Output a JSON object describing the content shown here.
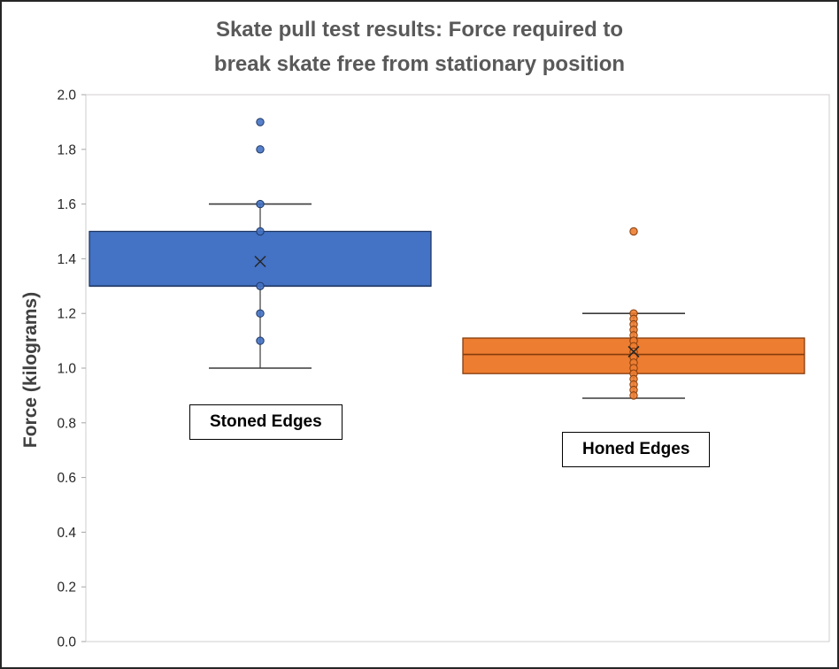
{
  "title": {
    "line1": "Skate pull test results: Force required to",
    "line2": "break skate free from stationary position"
  },
  "y_axis_label": "Force (kilograms)",
  "chart_data": {
    "type": "boxplot",
    "title": "Skate pull test results: Force required to break skate free from stationary position",
    "ylabel": "Force (kilograms)",
    "xlabel": "",
    "ylim": [
      0.0,
      2.0
    ],
    "ytick_step": 0.2,
    "grid": false,
    "legend": "none",
    "categories": [
      "Stoned Edges",
      "Honed Edges"
    ],
    "series": [
      {
        "name": "Stoned Edges",
        "fill": "#4472C4",
        "stroke": "#1F3864",
        "q1": 1.3,
        "median": 1.3,
        "q3": 1.5,
        "whisker_low": 1.0,
        "whisker_high": 1.6,
        "mean": 1.39,
        "outliers": [
          1.8,
          1.9
        ],
        "points": [
          1.9,
          1.8,
          1.6,
          1.5,
          1.3,
          1.2,
          1.1
        ]
      },
      {
        "name": "Honed Edges",
        "fill": "#ED7D31",
        "stroke": "#843C0C",
        "q1": 0.98,
        "median": 1.05,
        "q3": 1.11,
        "whisker_low": 0.89,
        "whisker_high": 1.2,
        "mean": 1.06,
        "outliers": [
          1.5
        ],
        "points": [
          1.5,
          1.2,
          1.18,
          1.16,
          1.14,
          1.12,
          1.1,
          1.08,
          1.06,
          1.04,
          1.02,
          1.0,
          0.98,
          0.96,
          0.94,
          0.92,
          0.9
        ]
      }
    ]
  }
}
